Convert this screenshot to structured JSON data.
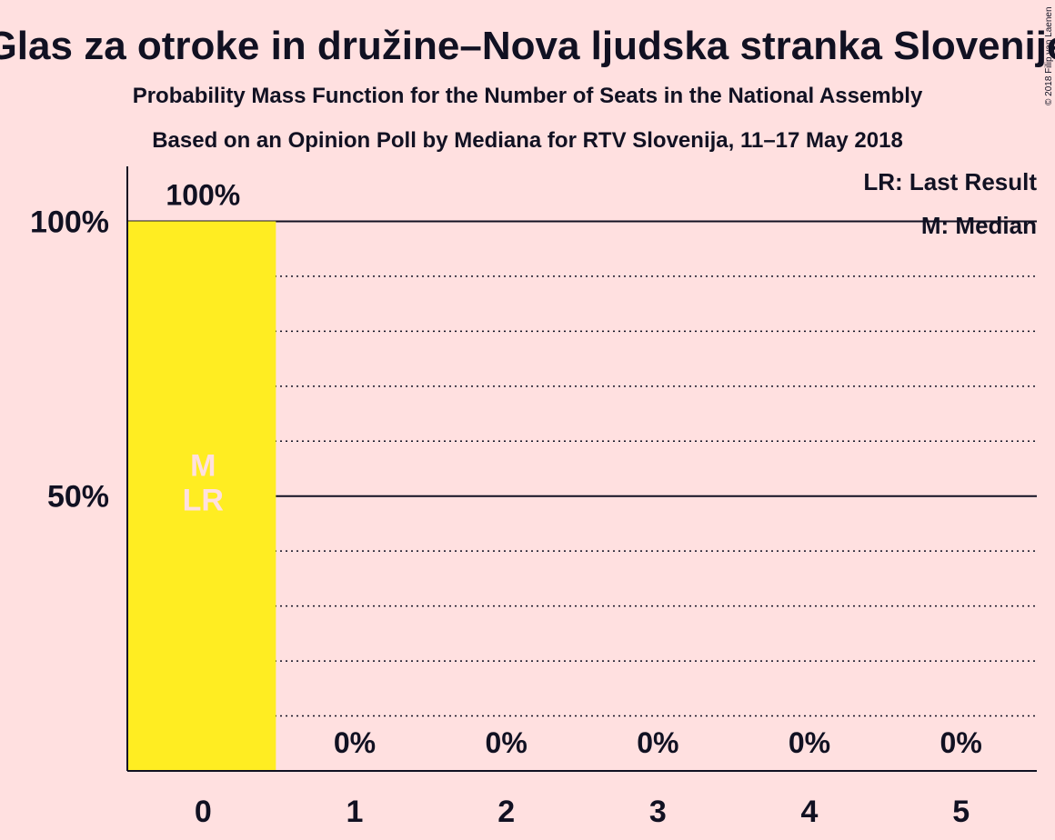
{
  "chart_data": {
    "type": "bar",
    "title": "Glas za otroke in družine–Nova ljudska stranka Slovenije",
    "subtitle": "Probability Mass Function for the Number of Seats in the National Assembly",
    "subtitle2": "Based on an Opinion Poll by Mediana for RTV Slovenija, 11–17 May 2018",
    "categories": [
      "0",
      "1",
      "2",
      "3",
      "4",
      "5"
    ],
    "values": [
      100,
      0,
      0,
      0,
      0,
      0
    ],
    "data_labels": [
      "100%",
      "0%",
      "0%",
      "0%",
      "0%",
      "0%"
    ],
    "y_ticks": [
      {
        "value": 50,
        "label": "50%"
      },
      {
        "value": 100,
        "label": "100%"
      }
    ],
    "ylim": [
      0,
      110
    ],
    "bar_color": "#FFED22",
    "bar_markers": {
      "category": "0",
      "lines": [
        "M",
        "LR"
      ]
    },
    "legend": {
      "placement": "top-right",
      "entries": [
        "LR: Last Result",
        "M: Median"
      ]
    },
    "copyright": "© 2018 Filip van Laenen"
  }
}
